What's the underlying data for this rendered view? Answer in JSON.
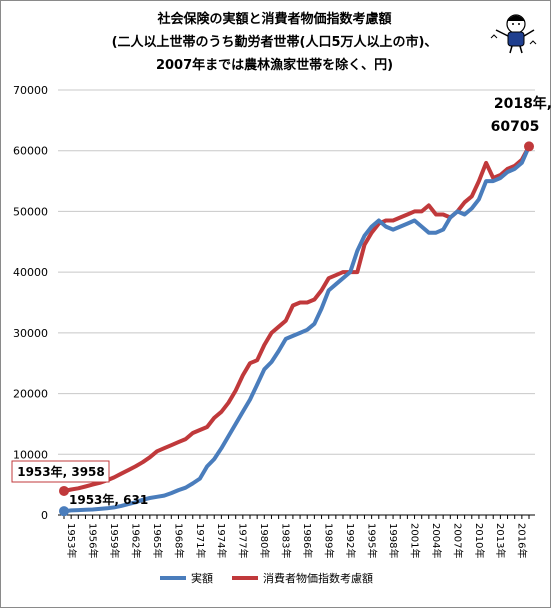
{
  "chart_data": {
    "type": "line",
    "title_lines": [
      "社会保険の実額と消費者物価指数考慮額",
      "(二人以上世帯のうち勤労者世帯(人口5万人以上の市)、",
      "2007年までは農林漁家世帯を除く、円)"
    ],
    "xlabel": "",
    "ylabel": "",
    "ylim": [
      0,
      70000
    ],
    "y_ticks": [
      "0",
      "10000",
      "20000",
      "30000",
      "40000",
      "50000",
      "60000",
      "70000"
    ],
    "x_tick_labels": [
      "1953年",
      "1956年",
      "1959年",
      "1962年",
      "1965年",
      "1968年",
      "1971年",
      "1974年",
      "1977年",
      "1980年",
      "1983年",
      "1986年",
      "1989年",
      "1992年",
      "1995年",
      "1998年",
      "2001年",
      "2004年",
      "2007年",
      "2010年",
      "2013年",
      "2016年"
    ],
    "grid": "horizontal",
    "legend_position": "bottom",
    "x": [
      1953,
      1954,
      1955,
      1956,
      1957,
      1958,
      1959,
      1960,
      1961,
      1962,
      1963,
      1964,
      1965,
      1966,
      1967,
      1968,
      1969,
      1970,
      1971,
      1972,
      1973,
      1974,
      1975,
      1976,
      1977,
      1978,
      1979,
      1980,
      1981,
      1982,
      1983,
      1984,
      1985,
      1986,
      1987,
      1988,
      1989,
      1990,
      1991,
      1992,
      1993,
      1994,
      1995,
      1996,
      1997,
      1998,
      1999,
      2000,
      2001,
      2002,
      2003,
      2004,
      2005,
      2006,
      2007,
      2008,
      2009,
      2010,
      2011,
      2012,
      2013,
      2014,
      2015,
      2016,
      2017,
      2018
    ],
    "series": [
      {
        "name": "実額",
        "color": "#4a7dbc",
        "values": [
          631,
          750,
          800,
          850,
          900,
          1000,
          1100,
          1250,
          1500,
          1800,
          2100,
          2500,
          2800,
          3000,
          3200,
          3600,
          4100,
          4500,
          5200,
          6000,
          8000,
          9200,
          11000,
          13000,
          15000,
          17000,
          19000,
          21500,
          24000,
          25200,
          27000,
          29000,
          29500,
          30000,
          30500,
          31500,
          34000,
          37000,
          38000,
          39000,
          40000,
          43500,
          46000,
          47500,
          48500,
          47500,
          47000,
          47500,
          48000,
          48500,
          47500,
          46500,
          46500,
          47000,
          49000,
          50000,
          49500,
          50500,
          52000,
          55000,
          55000,
          55500,
          56500,
          57000,
          58000,
          60705
        ]
      },
      {
        "name": "消費者物価指数考慮額",
        "color": "#c0393b",
        "values": [
          3958,
          4200,
          4400,
          4700,
          5000,
          5300,
          5700,
          6200,
          6800,
          7400,
          8000,
          8700,
          9500,
          10500,
          11000,
          11500,
          12000,
          12500,
          13500,
          14000,
          14500,
          16000,
          17000,
          18500,
          20500,
          23000,
          25000,
          25500,
          28000,
          30000,
          31000,
          32000,
          34500,
          35000,
          35000,
          35500,
          37000,
          39000,
          39500,
          40000,
          40000,
          40000,
          44500,
          46500,
          48000,
          48500,
          48500,
          49000,
          49500,
          50000,
          50000,
          51000,
          49500,
          49500,
          49000,
          50000,
          51500,
          52500,
          55000,
          58000,
          55500,
          56000,
          57000,
          57500,
          58500,
          60705
        ]
      }
    ],
    "annotations": [
      {
        "text": "2018年,",
        "text2": "60705",
        "year": 2018,
        "value": 60705
      },
      {
        "text": "1953年, 3958",
        "year": 1953,
        "value": 3958
      },
      {
        "text": "1953年, 631",
        "year": 1953,
        "value": 631
      }
    ]
  }
}
